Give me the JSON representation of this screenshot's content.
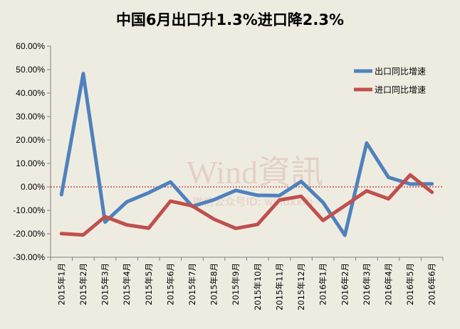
{
  "colors": {
    "background": "#eeece1",
    "export": "#4f81bd",
    "import": "#c0504d",
    "zero_line": "#c00000",
    "axis": "#808080"
  },
  "watermark": {
    "main": "Wind資訊",
    "sub": "微信公众号ID: windxxfb"
  },
  "chart_data": {
    "type": "line",
    "title": "中国6月出口升1.3%进口降2.3%",
    "xlabel": "",
    "ylabel": "",
    "ylim": [
      -30,
      60
    ],
    "y_step": 10,
    "y_tick_labels": [
      "-30.00%",
      "-20.00%",
      "-10.00%",
      "0.00%",
      "10.00%",
      "20.00%",
      "30.00%",
      "40.00%",
      "50.00%",
      "60.00%"
    ],
    "grid": false,
    "legend_position": "top-right",
    "categories": [
      "2015年1月",
      "2015年2月",
      "2015年3月",
      "2015年4月",
      "2015年5月",
      "2015年6月",
      "2015年7月",
      "2015年8月",
      "2015年9月",
      "2015年10月",
      "2015年11月",
      "2015年12月",
      "2016年1月",
      "2016年2月",
      "2016年3月",
      "2016年4月",
      "2016年5月",
      "2016年6月"
    ],
    "series": [
      {
        "name": "出口同比增速",
        "color": "#4f81bd",
        "values": [
          -3.3,
          48.3,
          -15.0,
          -6.4,
          -2.5,
          2.1,
          -8.3,
          -5.5,
          -1.5,
          -3.6,
          -3.7,
          2.3,
          -6.6,
          -20.6,
          18.7,
          4.1,
          1.2,
          1.3
        ]
      },
      {
        "name": "进口同比增速",
        "color": "#c0504d",
        "values": [
          -19.9,
          -20.5,
          -12.7,
          -16.2,
          -17.6,
          -6.1,
          -8.1,
          -13.8,
          -17.7,
          -16.0,
          -5.6,
          -4.0,
          -14.3,
          -8.0,
          -1.7,
          -5.1,
          5.1,
          -2.3
        ]
      }
    ]
  }
}
